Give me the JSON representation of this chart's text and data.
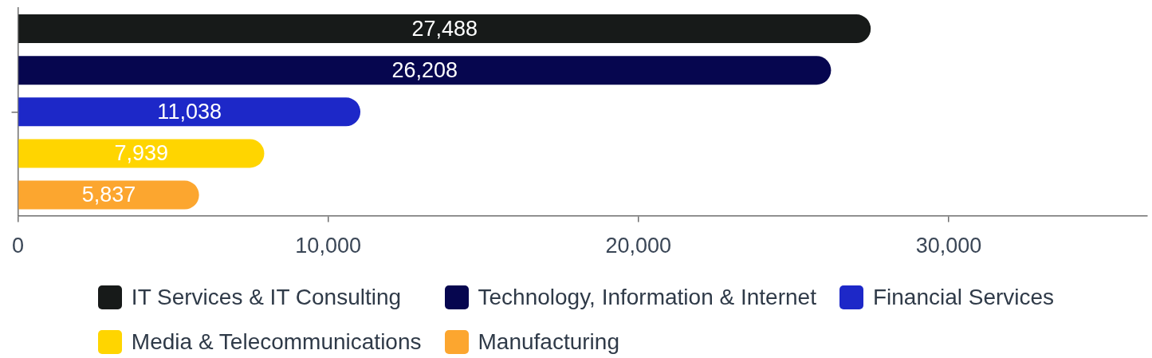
{
  "chart_data": {
    "type": "bar",
    "orientation": "horizontal",
    "categories": [
      null
    ],
    "series": [
      {
        "name": "IT Services & IT Consulting",
        "color": "#171a19",
        "values": [
          27488
        ],
        "value_labels": [
          "27,488"
        ]
      },
      {
        "name": "Technology, Information & Internet",
        "color": "#06064f",
        "values": [
          26208
        ],
        "value_labels": [
          "26,208"
        ]
      },
      {
        "name": "Financial Services",
        "color": "#1d28c8",
        "values": [
          11038
        ],
        "value_labels": [
          "11,038"
        ]
      },
      {
        "name": "Media & Telecommunications",
        "color": "#ffd500",
        "values": [
          7939
        ],
        "value_labels": [
          "7,939"
        ]
      },
      {
        "name": "Manufacturing",
        "color": "#fca62f",
        "values": [
          5837
        ],
        "value_labels": [
          "5,837"
        ]
      }
    ],
    "xlim": [
      0,
      36400
    ],
    "xticks": [
      0,
      {
        "value": 10000,
        "label": "10,000"
      },
      {
        "value": 20000,
        "label": "20,000"
      },
      {
        "value": 30000,
        "label": "30,000"
      }
    ],
    "legend": "bottom",
    "tick_labels": "x"
  }
}
